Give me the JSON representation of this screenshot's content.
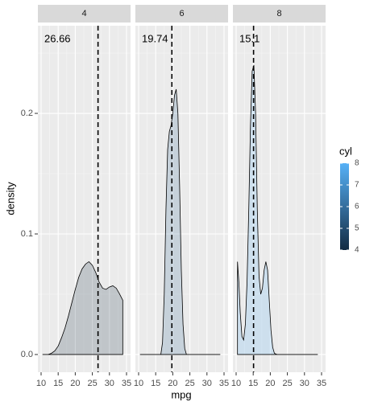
{
  "chart_data": {
    "type": "density",
    "xlabel": "mpg",
    "ylabel": "density",
    "xlim": [
      9.06,
      36.18
    ],
    "xticks": [
      10,
      15,
      20,
      25,
      30,
      35
    ],
    "ylim": [
      -0.0147,
      0.2727
    ],
    "yticks": [
      {
        "value": 0,
        "label": "0.0"
      },
      {
        "value": 0.1,
        "label": "0.1"
      },
      {
        "value": 0.2,
        "label": "0.2"
      }
    ],
    "grid": true,
    "alpha": 0.2,
    "facets": [
      {
        "title": "4",
        "mean": 26.66,
        "fill": "#132B43",
        "x": [
          10.4,
          11,
          12,
          13,
          14,
          15,
          16,
          17,
          18,
          19,
          20,
          21,
          22,
          23,
          24,
          25,
          26,
          27,
          28,
          29,
          30,
          31,
          32,
          33,
          33.9
        ],
        "values": [
          0,
          0,
          0,
          0.001,
          0.003,
          0.007,
          0.014,
          0.022,
          0.032,
          0.043,
          0.054,
          0.064,
          0.071,
          0.075,
          0.077,
          0.074,
          0.068,
          0.06,
          0.055,
          0.054,
          0.056,
          0.057,
          0.055,
          0.05,
          0.045
        ]
      },
      {
        "title": "6",
        "mean": 19.74,
        "fill": "#336A98",
        "x": [
          10.4,
          16.5,
          17,
          17.5,
          18,
          18.5,
          19,
          19.5,
          20,
          20.5,
          21,
          21.5,
          22,
          22.5,
          23,
          23.5,
          24,
          33.9
        ],
        "values": [
          0,
          0,
          0.01,
          0.05,
          0.12,
          0.17,
          0.185,
          0.19,
          0.2,
          0.215,
          0.22,
          0.2,
          0.14,
          0.07,
          0.025,
          0.005,
          0,
          0
        ]
      },
      {
        "title": "8",
        "mean": 15.1,
        "fill": "#56B1F7",
        "x": [
          10.4,
          10.8,
          11.2,
          11.7,
          12.2,
          12.7,
          13.2,
          13.7,
          14.2,
          14.7,
          15.2,
          15.7,
          16.2,
          16.7,
          17.2,
          17.7,
          18.2,
          18.7,
          19.2,
          19.7,
          20.2,
          20.7,
          21.2,
          22,
          33.9
        ],
        "values": [
          0.077,
          0.06,
          0.035,
          0.015,
          0.012,
          0.025,
          0.06,
          0.12,
          0.19,
          0.235,
          0.24,
          0.2,
          0.12,
          0.065,
          0.05,
          0.055,
          0.07,
          0.077,
          0.07,
          0.045,
          0.02,
          0.006,
          0.001,
          0,
          0
        ]
      }
    ],
    "legend": {
      "title": "cyl",
      "lim": [
        4,
        8
      ],
      "ticks": [
        4,
        5,
        6,
        7,
        8
      ],
      "low": "#132B43",
      "high": "#56B1F7"
    }
  }
}
